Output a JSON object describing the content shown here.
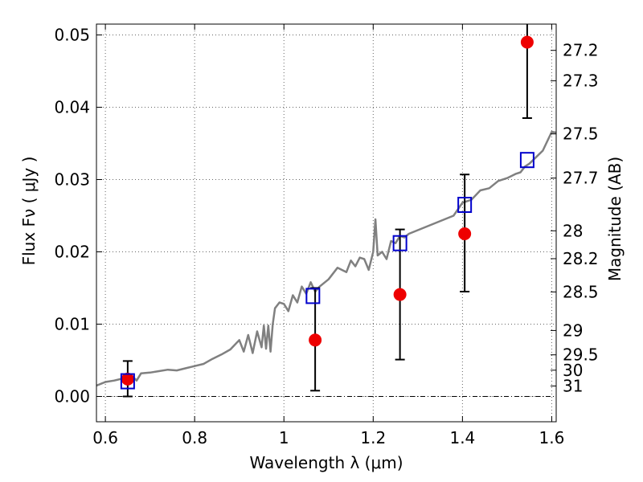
{
  "chart_data": {
    "type": "scatter",
    "xlabel": "Wavelength  λ (μm)",
    "ylabel": "Flux  Fν  ( μJy )",
    "y2label": "Magnitude (AB)",
    "xlim": [
      0.58,
      1.61
    ],
    "ylim": [
      -0.0035,
      0.0515
    ],
    "grid": true,
    "x_ticks": [
      {
        "v": 0.6,
        "label": "0.6"
      },
      {
        "v": 0.8,
        "label": "0.8"
      },
      {
        "v": 1.0,
        "label": "1"
      },
      {
        "v": 1.2,
        "label": "1.2"
      },
      {
        "v": 1.4,
        "label": "1.4"
      },
      {
        "v": 1.6,
        "label": "1.6"
      }
    ],
    "y_ticks": [
      {
        "v": 0.0,
        "label": "0.00"
      },
      {
        "v": 0.01,
        "label": "0.01"
      },
      {
        "v": 0.02,
        "label": "0.02"
      },
      {
        "v": 0.03,
        "label": "0.03"
      },
      {
        "v": 0.04,
        "label": "0.04"
      },
      {
        "v": 0.05,
        "label": "0.05"
      }
    ],
    "y2_ticks": [
      {
        "mag": 27.2,
        "label": "27.2"
      },
      {
        "mag": 27.3,
        "label": "27.3"
      },
      {
        "mag": 27.5,
        "label": "27.5"
      },
      {
        "mag": 27.7,
        "label": "27.7"
      },
      {
        "mag": 28.0,
        "label": "28"
      },
      {
        "mag": 28.2,
        "label": "28.2"
      },
      {
        "mag": 28.5,
        "label": "28.5"
      },
      {
        "mag": 29.0,
        "label": "29"
      },
      {
        "mag": 29.5,
        "label": "29.5"
      },
      {
        "mag": 30.0,
        "label": "30"
      },
      {
        "mag": 31.0,
        "label": "31"
      }
    ],
    "series": [
      {
        "kind": "line",
        "color": "#808080",
        "x": [
          0.58,
          0.6,
          0.62,
          0.64,
          0.66,
          0.67,
          0.68,
          0.7,
          0.72,
          0.74,
          0.76,
          0.78,
          0.8,
          0.82,
          0.84,
          0.86,
          0.88,
          0.9,
          0.91,
          0.92,
          0.93,
          0.94,
          0.95,
          0.955,
          0.96,
          0.965,
          0.97,
          0.975,
          0.98,
          0.99,
          1.0,
          1.01,
          1.02,
          1.03,
          1.04,
          1.05,
          1.06,
          1.07,
          1.08,
          1.1,
          1.12,
          1.14,
          1.15,
          1.16,
          1.17,
          1.18,
          1.19,
          1.2,
          1.205,
          1.21,
          1.22,
          1.23,
          1.24,
          1.25,
          1.26,
          1.27,
          1.28,
          1.3,
          1.32,
          1.34,
          1.36,
          1.38,
          1.4,
          1.42,
          1.44,
          1.46,
          1.48,
          1.5,
          1.52,
          1.53,
          1.54,
          1.55,
          1.56,
          1.58,
          1.6,
          1.61
        ],
        "y": [
          0.0015,
          0.002,
          0.0022,
          0.0025,
          0.0028,
          0.0022,
          0.0032,
          0.0033,
          0.0035,
          0.0037,
          0.0036,
          0.0039,
          0.0042,
          0.0045,
          0.0052,
          0.0058,
          0.0065,
          0.0078,
          0.0062,
          0.0085,
          0.006,
          0.009,
          0.0068,
          0.0098,
          0.0066,
          0.0098,
          0.0062,
          0.01,
          0.0122,
          0.013,
          0.0128,
          0.0118,
          0.014,
          0.013,
          0.0152,
          0.0142,
          0.0158,
          0.0145,
          0.0152,
          0.0162,
          0.0178,
          0.0172,
          0.0188,
          0.018,
          0.0192,
          0.019,
          0.0175,
          0.02,
          0.0245,
          0.0195,
          0.02,
          0.019,
          0.0215,
          0.0212,
          0.0222,
          0.022,
          0.0225,
          0.023,
          0.0235,
          0.024,
          0.0245,
          0.025,
          0.0268,
          0.0272,
          0.0285,
          0.0288,
          0.0298,
          0.0302,
          0.0308,
          0.031,
          0.0318,
          0.0322,
          0.0328,
          0.034,
          0.0366,
          0.0365
        ]
      },
      {
        "kind": "points",
        "marker": "square",
        "color": "#0000cc",
        "x": [
          0.65,
          1.065,
          1.26,
          1.405,
          1.545
        ],
        "y": [
          0.0021,
          0.0139,
          0.0212,
          0.0265,
          0.0327
        ]
      },
      {
        "kind": "points",
        "marker": "circle",
        "color": "#ee0000",
        "x": [
          0.65,
          1.07,
          1.26,
          1.405,
          1.545
        ],
        "y": [
          0.0024,
          0.0078,
          0.0141,
          0.0225,
          0.049
        ],
        "yerr_low": [
          0.0024,
          0.007,
          0.009,
          0.008,
          0.0105
        ],
        "yerr_high": [
          0.0025,
          0.0072,
          0.009,
          0.0082,
          0.003
        ]
      }
    ]
  }
}
